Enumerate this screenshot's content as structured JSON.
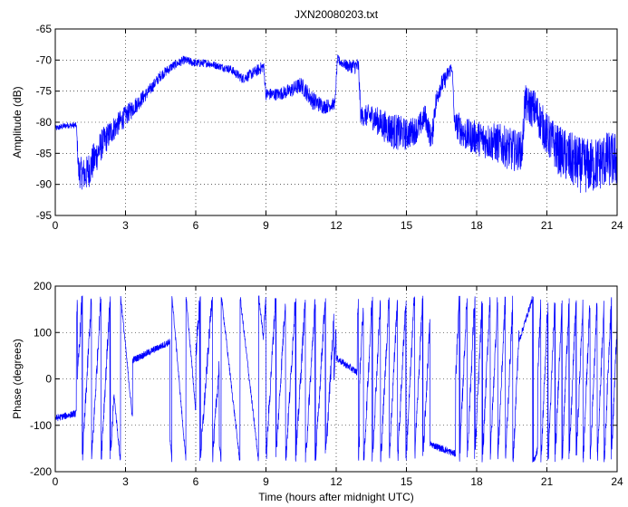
{
  "figure": {
    "title": "JXN20080203.txt",
    "line_color": "#0000ff"
  },
  "chart_data": [
    {
      "type": "line",
      "title": "JXN20080203.txt",
      "xlabel": "",
      "ylabel": "Amplitude (dB)",
      "xlim": [
        0,
        24
      ],
      "ylim": [
        -95,
        -65
      ],
      "xticks": [
        0,
        3,
        6,
        9,
        12,
        15,
        18,
        21,
        24
      ],
      "yticks": [
        -95,
        -90,
        -85,
        -80,
        -75,
        -70,
        -65
      ],
      "grid": "dotted",
      "noise_width_db": [
        [
          0,
          1
        ],
        [
          0.9,
          1
        ],
        [
          1.0,
          5
        ],
        [
          1.5,
          6
        ],
        [
          2.5,
          4
        ],
        [
          4,
          2
        ],
        [
          5,
          1.5
        ],
        [
          7,
          1.2
        ],
        [
          8.9,
          2
        ],
        [
          9.5,
          2
        ],
        [
          11,
          3
        ],
        [
          12.3,
          1.5
        ],
        [
          13,
          3
        ],
        [
          14.5,
          6
        ],
        [
          15.7,
          4
        ],
        [
          16.2,
          4
        ],
        [
          17,
          2
        ],
        [
          17.2,
          5
        ],
        [
          19.5,
          7
        ],
        [
          20,
          6
        ],
        [
          21,
          7
        ],
        [
          22,
          9
        ],
        [
          24,
          9
        ]
      ],
      "series": [
        {
          "values_xy": [
            [
              0.0,
              -81.0
            ],
            [
              0.5,
              -80.5
            ],
            [
              0.9,
              -80.5
            ],
            [
              1.0,
              -88.0
            ],
            [
              1.3,
              -88.5
            ],
            [
              1.6,
              -86.5
            ],
            [
              2.0,
              -83.5
            ],
            [
              2.5,
              -81.0
            ],
            [
              3.0,
              -79.0
            ],
            [
              3.5,
              -77.0
            ],
            [
              4.0,
              -75.0
            ],
            [
              4.5,
              -72.5
            ],
            [
              5.0,
              -71.0
            ],
            [
              5.5,
              -70.0
            ],
            [
              6.0,
              -70.5
            ],
            [
              6.5,
              -70.5
            ],
            [
              7.0,
              -71.0
            ],
            [
              7.5,
              -71.5
            ],
            [
              8.0,
              -73.0
            ],
            [
              8.5,
              -72.0
            ],
            [
              8.9,
              -71.0
            ],
            [
              9.0,
              -75.5
            ],
            [
              9.5,
              -75.5
            ],
            [
              10.0,
              -75.0
            ],
            [
              10.5,
              -74.0
            ],
            [
              11.0,
              -76.5
            ],
            [
              11.5,
              -77.5
            ],
            [
              11.95,
              -77.0
            ],
            [
              12.05,
              -70.0
            ],
            [
              12.5,
              -71.0
            ],
            [
              12.95,
              -71.0
            ],
            [
              13.05,
              -79.0
            ],
            [
              13.5,
              -79.0
            ],
            [
              14.0,
              -80.5
            ],
            [
              14.5,
              -81.5
            ],
            [
              15.0,
              -82.0
            ],
            [
              15.5,
              -81.0
            ],
            [
              15.8,
              -79.0
            ],
            [
              16.0,
              -82.0
            ],
            [
              16.1,
              -82.5
            ],
            [
              16.2,
              -78.0
            ],
            [
              16.4,
              -74.5
            ],
            [
              16.6,
              -73.5
            ],
            [
              16.95,
              -71.0
            ],
            [
              17.05,
              -80.0
            ],
            [
              17.5,
              -82.0
            ],
            [
              18.0,
              -82.5
            ],
            [
              18.5,
              -83.0
            ],
            [
              19.0,
              -83.5
            ],
            [
              19.5,
              -84.5
            ],
            [
              19.95,
              -84.5
            ],
            [
              20.05,
              -77.0
            ],
            [
              20.5,
              -78.0
            ],
            [
              21.0,
              -82.0
            ],
            [
              21.5,
              -84.5
            ],
            [
              22.0,
              -86.0
            ],
            [
              22.5,
              -87.0
            ],
            [
              23.0,
              -87.0
            ],
            [
              23.5,
              -86.0
            ],
            [
              24.0,
              -86.0
            ]
          ]
        }
      ]
    },
    {
      "type": "line",
      "title": "",
      "xlabel": "Time (hours after midnight UTC)",
      "ylabel": "Phase (degrees)",
      "xlim": [
        0,
        24
      ],
      "ylim": [
        -200,
        200
      ],
      "xticks": [
        0,
        3,
        6,
        9,
        12,
        15,
        18,
        21,
        24
      ],
      "yticks": [
        -200,
        -100,
        0,
        100,
        200
      ],
      "grid": "dotted",
      "wrap_range": [
        -180,
        180
      ],
      "series": [
        {
          "slope_segments": [
            [
              0.0,
              0.9,
              -85,
              12
            ],
            [
              0.95,
              2.5,
              0,
              900
            ],
            [
              2.5,
              3.3,
              -30,
              -520
            ],
            [
              3.3,
              4.9,
              40,
              25
            ],
            [
              4.9,
              6.0,
              -130,
              -600
            ],
            [
              6.0,
              7.0,
              50,
              700
            ],
            [
              7.0,
              8.9,
              -140,
              -450
            ],
            [
              8.9,
              11.9,
              100,
              850
            ],
            [
              12.0,
              12.9,
              45,
              -35
            ],
            [
              13.0,
              16.0,
              0,
              1000
            ],
            [
              16.0,
              17.1,
              -140,
              -20
            ],
            [
              17.1,
              19.8,
              0,
              1100
            ],
            [
              19.8,
              20.6,
              80,
              160
            ],
            [
              20.6,
              24.0,
              0,
              1200
            ]
          ]
        }
      ]
    }
  ]
}
